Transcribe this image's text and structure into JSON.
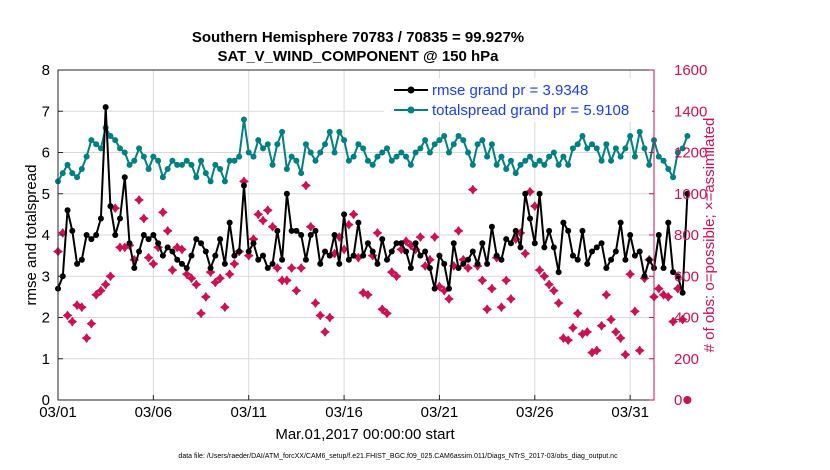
{
  "chart_data": {
    "type": "line",
    "title_line1": "Southern Hemisphere 70783 / 70835 = 99.927%",
    "title_line2": "SAT_V_WIND_COMPONENT @ 150 hPa",
    "xlabel": "Mar.01,2017 00:00:00 start",
    "ylabel_left": "rmse and totalspread",
    "ylabel_right": "# of obs: o=possible; ×=assimilated",
    "footnote": "data file: /Users/raeder/DAI/ATM_forcXX/CAM6_setup/f.e21.FHIST_BGC.f09_025.CAM6assim.011/Diags_NTrS_2017-03/obs_diag_output.nc",
    "xlim": [
      1,
      32.25
    ],
    "ylim_left": [
      0,
      8
    ],
    "ylim_right": [
      0,
      1600
    ],
    "x_ticks": [
      1,
      6,
      11,
      16,
      21,
      26,
      31
    ],
    "x_tick_labels": [
      "03/01",
      "03/06",
      "03/11",
      "03/16",
      "03/21",
      "03/26",
      "03/31"
    ],
    "y_left_ticks": [
      "0",
      "1",
      "2",
      "3",
      "4",
      "5",
      "6",
      "7",
      "8"
    ],
    "y_right_ticks": [
      "0",
      "200",
      "400",
      "600",
      "800",
      "1000",
      "1200",
      "1400",
      "1600"
    ],
    "legend": {
      "rmse": "rmse grand pr = 3.9348",
      "spread": "totalspread grand pr = 5.9108"
    },
    "colors": {
      "rmse": "#000000",
      "spread": "#008080",
      "obs": "#cc1155",
      "right_axis": "#cc1155",
      "legend_text": "#1a3cff"
    },
    "x_start": 1.0,
    "x_step": 0.25,
    "series": [
      {
        "name": "rmse",
        "values": [
          2.7,
          3.0,
          4.6,
          4.1,
          3.3,
          3.4,
          4.0,
          3.9,
          4.0,
          4.4,
          7.1,
          4.7,
          4.0,
          4.4,
          5.4,
          3.8,
          3.2,
          3.6,
          4.0,
          3.9,
          4.0,
          3.8,
          3.5,
          3.7,
          3.6,
          3.4,
          3.3,
          3.2,
          3.5,
          3.9,
          3.8,
          3.6,
          3.2,
          3.5,
          3.9,
          3.3,
          4.3,
          3.5,
          3.6,
          5.2,
          3.6,
          3.8,
          3.4,
          3.5,
          3.2,
          3.3,
          4.1,
          3.4,
          5.0,
          4.1,
          4.1,
          4.0,
          3.4,
          4.0,
          4.1,
          3.3,
          3.6,
          3.5,
          4.0,
          3.3,
          4.5,
          3.4,
          3.5,
          4.3,
          3.5,
          3.8,
          3.6,
          3.3,
          3.9,
          3.4,
          3.6,
          3.8,
          3.8,
          3.6,
          3.2,
          3.8,
          3.5,
          3.6,
          3.2,
          2.7,
          3.5,
          3.3,
          2.7,
          3.8,
          3.2,
          3.3,
          3.4,
          3.6,
          3.3,
          3.8,
          3.3,
          4.2,
          3.5,
          3.4,
          3.9,
          3.8,
          4.1,
          3.7,
          5.0,
          4.4,
          3.8,
          5.0,
          3.7,
          4.1,
          3.7,
          3.1,
          4.3,
          4.1,
          3.5,
          3.4,
          4.1,
          3.3,
          3.6,
          3.7,
          3.8,
          3.2,
          3.4,
          3.6,
          4.3,
          3.4,
          4.0,
          3.5,
          3.6,
          3.0,
          3.4,
          3.2,
          4.0,
          3.2,
          4.3,
          3.1,
          3.0,
          2.6,
          5.0
        ]
      },
      {
        "name": "totalspread",
        "values": [
          5.3,
          5.5,
          5.7,
          5.5,
          5.4,
          5.6,
          5.9,
          6.3,
          6.2,
          6.1,
          6.6,
          6.4,
          6.3,
          6.1,
          6.0,
          5.7,
          5.8,
          6.1,
          5.9,
          5.6,
          5.9,
          5.8,
          5.4,
          5.6,
          5.8,
          5.7,
          5.7,
          5.8,
          5.7,
          5.4,
          5.8,
          5.5,
          5.3,
          5.7,
          5.6,
          5.3,
          5.8,
          5.8,
          5.9,
          6.8,
          6.0,
          5.9,
          6.3,
          6.1,
          6.2,
          5.7,
          6.2,
          6.5,
          5.6,
          5.9,
          5.8,
          5.5,
          6.2,
          6.0,
          5.8,
          6.0,
          6.2,
          6.5,
          6.0,
          6.5,
          6.3,
          5.8,
          5.9,
          6.2,
          6.1,
          5.8,
          5.7,
          5.9,
          6.0,
          6.1,
          5.8,
          5.9,
          6.0,
          5.9,
          5.7,
          6.0,
          6.1,
          6.3,
          6.0,
          6.2,
          6.3,
          6.4,
          6.0,
          6.2,
          6.4,
          6.3,
          6.0,
          5.7,
          6.2,
          6.3,
          5.9,
          6.2,
          5.7,
          5.9,
          5.6,
          5.8,
          5.5,
          5.7,
          5.8,
          5.9,
          5.7,
          5.8,
          5.7,
          5.9,
          6.0,
          5.7,
          5.9,
          5.7,
          6.1,
          6.2,
          6.4,
          6.1,
          6.2,
          6.1,
          5.8,
          6.2,
          5.8,
          6.1,
          5.9,
          6.1,
          6.4,
          5.9,
          6.5,
          6.1,
          5.7,
          6.3,
          5.9,
          5.8,
          5.6,
          5.4,
          6.0,
          6.1,
          6.4
        ]
      },
      {
        "name": "nobs_assimilated",
        "axis": "right",
        "values": [
          720,
          810,
          410,
          380,
          460,
          450,
          300,
          370,
          510,
          530,
          560,
          600,
          930,
          740,
          740,
          750,
          680,
          970,
          880,
          690,
          660,
          740,
          910,
          820,
          630,
          740,
          730,
          610,
          590,
          560,
          420,
          500,
          620,
          570,
          590,
          450,
          610,
          660,
          720,
          1060,
          700,
          780,
          900,
          870,
          920,
          840,
          640,
          580,
          580,
          640,
          530,
          640,
          1040,
          840,
          470,
          410,
          330,
          400,
          710,
          790,
          730,
          850,
          900,
          690,
          520,
          510,
          700,
          810,
          440,
          420,
          620,
          600,
          730,
          770,
          750,
          730,
          790,
          650,
          680,
          790,
          550,
          530,
          490,
          650,
          820,
          680,
          640,
          1020,
          650,
          580,
          440,
          540,
          690,
          450,
          580,
          490,
          780,
          810,
          710,
          1010,
          940,
          630,
          600,
          560,
          530,
          470,
          300,
          290,
          350,
          420,
          320,
          330,
          230,
          240,
          360,
          510,
          390,
          330,
          300,
          220,
          610,
          430,
          240,
          590,
          680,
          500,
          540,
          510,
          500,
          380,
          540,
          390,
          0
        ]
      }
    ]
  }
}
